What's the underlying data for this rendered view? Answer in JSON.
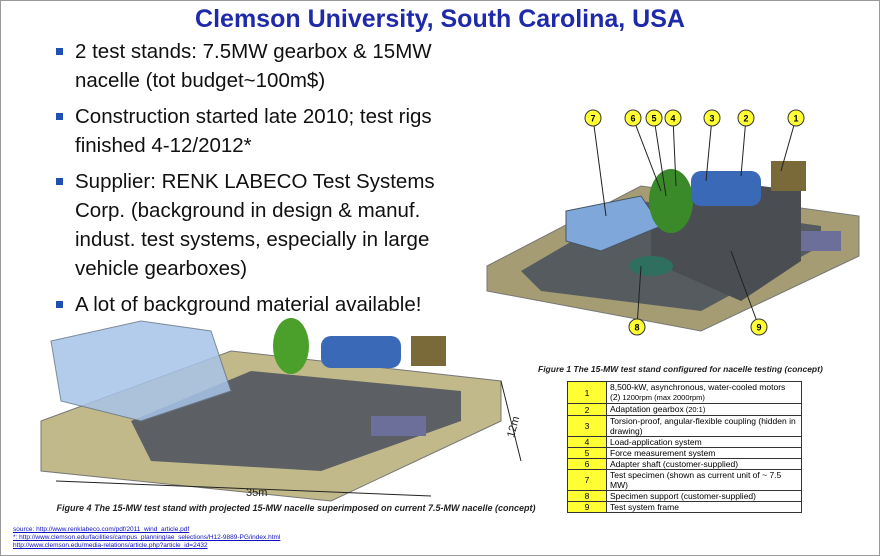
{
  "title": "Clemson University, South Carolina, USA",
  "bullets": [
    "2 test stands: 7.5MW gearbox & 15MW nacelle (tot budget~100m$)",
    "Construction started late 2010; test rigs finished 4-12/2012*",
    "Supplier: RENK LABECO Test Systems Corp. (background in design & manuf. indust. test systems, especially in large vehicle gearboxes)",
    "A lot of background material available!"
  ],
  "figure1": {
    "callouts": [
      "7",
      "6",
      "5",
      "4",
      "3",
      "2",
      "1",
      "8",
      "9"
    ],
    "caption": "Figure 1 The 15-MW test stand configured for nacelle testing (concept)"
  },
  "table": {
    "rows": [
      {
        "number": "1",
        "text": "8,500-kW, asynchronous, water-cooled motors (2)",
        "note": "1200rpm (max 2000rpm)"
      },
      {
        "number": "2",
        "text": "Adaptation gearbox",
        "note": "(20:1)"
      },
      {
        "number": "3",
        "text": "Torsion-proof, angular-flexible coupling (hidden in drawing)"
      },
      {
        "number": "4",
        "text": "Load-application system"
      },
      {
        "number": "5",
        "text": "Force measurement system"
      },
      {
        "number": "6",
        "text": "Adapter shaft (customer-supplied)"
      },
      {
        "number": "7",
        "text": "Test specimen (shown as current unit of ~ 7.5 MW)"
      },
      {
        "number": "8",
        "text": "Specimen support (customer-supplied)"
      },
      {
        "number": "9",
        "text": "Test system frame"
      }
    ]
  },
  "figure4": {
    "length": "35m",
    "width": "12m",
    "caption": "Figure 4 The 15-MW test stand with projected 15-MW nacelle superimposed on current 7.5-MW nacelle (concept)"
  },
  "sources": [
    "source: http://www.renklabeco.com/pdf/2011_wind_article.pdf",
    "*: http://www.clemson.edu/facilities/campus_planning/ae_selections/H12-9889-PG/index.html",
    "http://www.clemson.edu/media-relations/article.php?article_id=2432"
  ]
}
